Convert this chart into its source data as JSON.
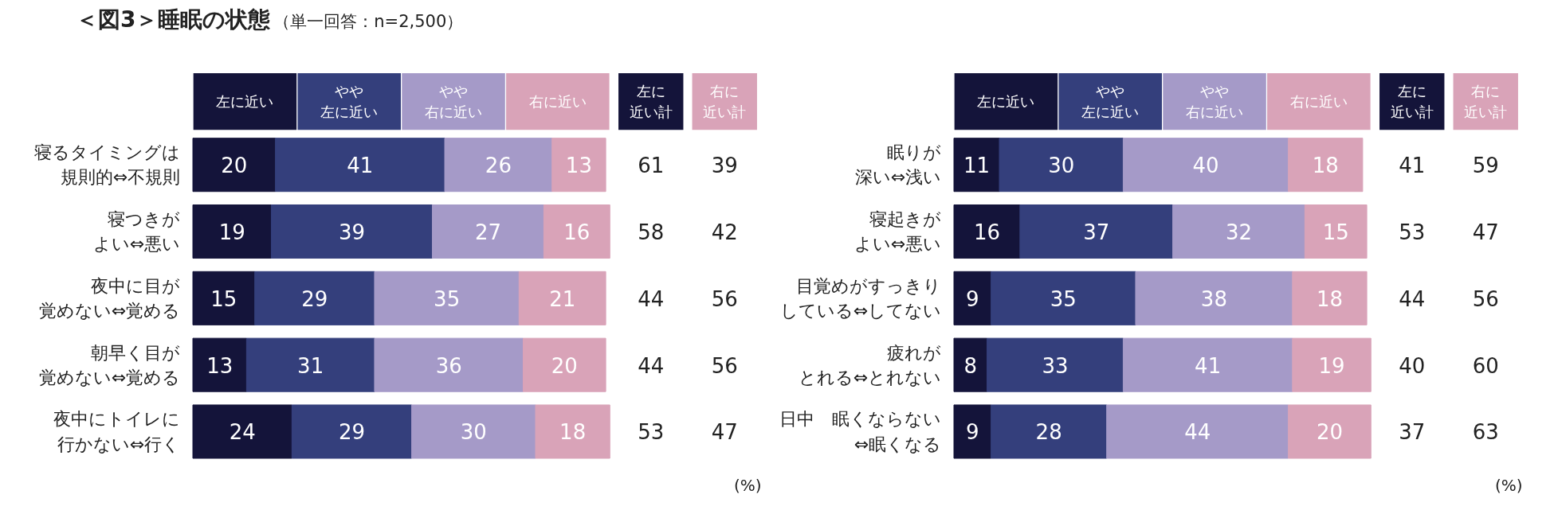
{
  "chart_data": [
    {
      "type": "bar",
      "title": "＜図3＞睡眠の状態",
      "subtitle": "（単一回答：n=2,500）",
      "orientation": "horizontal",
      "stacked": true,
      "data_labels": true,
      "legend": "top",
      "grid": false,
      "categories": [
        "寝るタイミングは規則的⇔不規則",
        "寝つきがよい⇔悪い",
        "夜中に目が覚めない⇔覚める",
        "朝早く目が覚めない⇔覚める",
        "夜中にトイレに行かない⇔行く"
      ],
      "series": [
        {
          "name": "左に近い",
          "color": "#14143a",
          "values": [
            20,
            19,
            15,
            13,
            24
          ]
        },
        {
          "name": "やや左に近い",
          "color": "#343f7c",
          "values": [
            41,
            39,
            29,
            31,
            29
          ]
        },
        {
          "name": "やや右に近い",
          "color": "#a59ac8",
          "values": [
            26,
            27,
            35,
            36,
            30
          ]
        },
        {
          "name": "右に近い",
          "color": "#d9a3b8",
          "values": [
            13,
            16,
            21,
            20,
            18
          ]
        }
      ]
    },
    {
      "type": "heatmap",
      "tick_labels": "x",
      "data_labels": true,
      "annotations": [
        "(%)"
      ],
      "categories": [
        "左に近い計",
        "右に近い計"
      ],
      "y_categories": [
        "寝るタイミングは規則的⇔不規則",
        "寝つきがよい⇔悪い",
        "夜中に目が覚めない⇔覚める",
        "朝早く目が覚めない⇔覚める",
        "夜中にトイレに行かない⇔行く"
      ],
      "cells": [
        [
          61,
          39
        ],
        [
          58,
          42
        ],
        [
          44,
          56
        ],
        [
          44,
          56
        ],
        [
          53,
          47
        ]
      ]
    },
    {
      "type": "bar",
      "orientation": "horizontal",
      "stacked": true,
      "data_labels": true,
      "legend": "top",
      "grid": false,
      "categories": [
        "眠りが深い⇔浅い",
        "寝起きがよい⇔悪い",
        "目覚めがすっきりしている⇔してない",
        "疲れがとれる⇔とれない",
        "日中　眠くならない⇔眠くなる"
      ],
      "series": [
        {
          "name": "左に近い",
          "color": "#14143a",
          "values": [
            11,
            16,
            9,
            8,
            9
          ]
        },
        {
          "name": "やや左に近い",
          "color": "#343f7c",
          "values": [
            30,
            37,
            35,
            33,
            28
          ]
        },
        {
          "name": "やや右に近い",
          "color": "#a59ac8",
          "values": [
            40,
            32,
            38,
            41,
            44
          ]
        },
        {
          "name": "右に近い",
          "color": "#d9a3b8",
          "values": [
            18,
            15,
            18,
            19,
            20
          ]
        }
      ]
    },
    {
      "type": "heatmap",
      "tick_labels": "x",
      "data_labels": true,
      "annotations": [
        "(%)"
      ],
      "categories": [
        "左に近い計",
        "右に近い計"
      ],
      "y_categories": [
        "眠りが深い⇔浅い",
        "寝起きがよい⇔悪い",
        "目覚めがすっきりしている⇔してない",
        "疲れがとれる⇔とれない",
        "日中　眠くならない⇔眠くなる"
      ],
      "cells": [
        [
          41,
          59
        ],
        [
          53,
          47
        ],
        [
          44,
          56
        ],
        [
          40,
          60
        ],
        [
          37,
          63
        ]
      ]
    }
  ]
}
